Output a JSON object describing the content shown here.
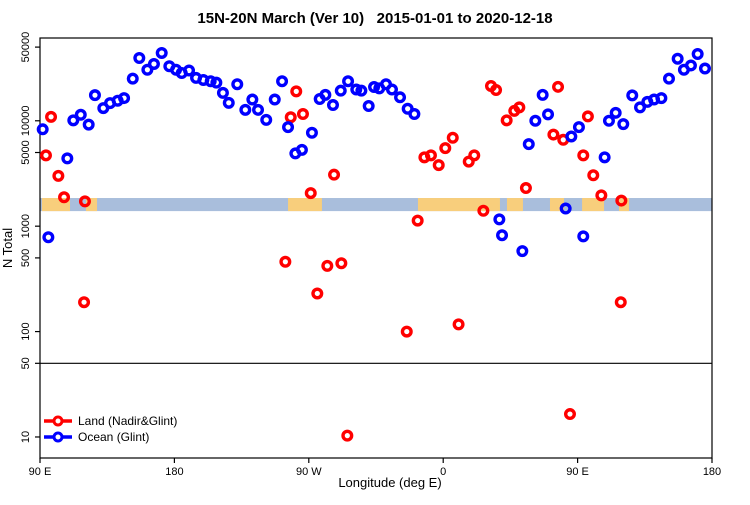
{
  "chart_data": {
    "type": "scatter",
    "title": "15N-20N March (Ver 10)   2015-01-01 to 2020-12-18",
    "x_axis": {
      "label": "Longitude (deg E)",
      "note": "axis wraps eastward starting at 90E",
      "range_deg": [
        0,
        450
      ],
      "ticks": [
        {
          "deg": 0,
          "label": "90 E"
        },
        {
          "deg": 90,
          "label": "180"
        },
        {
          "deg": 180,
          "label": "90 W"
        },
        {
          "deg": 270,
          "label": "0"
        },
        {
          "deg": 360,
          "label": "90 E"
        },
        {
          "deg": 450,
          "label": "180"
        }
      ]
    },
    "y_axis": {
      "label": "N Total",
      "scale": "log10",
      "range": [
        6.3,
        61000
      ],
      "ticks": [
        10,
        50,
        100,
        500,
        1000,
        5000,
        10000,
        50000
      ]
    },
    "reference_line": {
      "n": 50,
      "color": "#000000"
    },
    "map_band": {
      "n_range": [
        1390,
        1850
      ],
      "ocean_color": "#A9BEDC",
      "land_color": "#F8CE7C",
      "land_patches_deg": [
        [
          1.3,
          20.1
        ],
        [
          30.8,
          38.2
        ],
        [
          166.1,
          188.8
        ],
        [
          253.1,
          308.0
        ],
        [
          312.7,
          323.4
        ],
        [
          341.5,
          350.9
        ],
        [
          363.0,
          377.7
        ],
        [
          387.7,
          394.4
        ]
      ]
    },
    "legend": {
      "position": "bottom-left"
    },
    "series": [
      {
        "name": "Land (Nadir&Glint)",
        "color": "#FF0000",
        "points": [
          [
            7.4,
            10900
          ],
          [
            4.0,
            4700
          ],
          [
            12.3,
            3000
          ],
          [
            16.1,
            1880
          ],
          [
            30.1,
            1720
          ],
          [
            29.5,
            190
          ],
          [
            164.3,
            460
          ],
          [
            167.9,
            10800
          ],
          [
            171.6,
            19000
          ],
          [
            176.1,
            11600
          ],
          [
            181.3,
            2060
          ],
          [
            185.7,
            230
          ],
          [
            192.4,
            420
          ],
          [
            196.9,
            3080
          ],
          [
            201.8,
            445
          ],
          [
            205.8,
            10.3
          ],
          [
            245.6,
            100
          ],
          [
            252.9,
            1130
          ],
          [
            257.4,
            4500
          ],
          [
            261.8,
            4700
          ],
          [
            267.0,
            3800
          ],
          [
            271.4,
            5500
          ],
          [
            276.4,
            6900
          ],
          [
            280.3,
            117
          ],
          [
            287.1,
            4100
          ],
          [
            290.8,
            4700
          ],
          [
            296.9,
            1400
          ],
          [
            302.0,
            21400
          ],
          [
            305.4,
            19600
          ],
          [
            312.5,
            10100
          ],
          [
            317.6,
            12400
          ],
          [
            321.0,
            13400
          ],
          [
            325.4,
            2300
          ],
          [
            343.8,
            7400
          ],
          [
            346.9,
            21000
          ],
          [
            350.4,
            6600
          ],
          [
            354.9,
            16.5
          ],
          [
            363.8,
            4700
          ],
          [
            366.9,
            11000
          ],
          [
            370.5,
            3040
          ],
          [
            375.9,
            1960
          ],
          [
            388.9,
            190
          ],
          [
            389.3,
            1750
          ]
        ]
      },
      {
        "name": "Ocean (Glint)",
        "color": "#0000FF",
        "points": [
          [
            1.8,
            8300
          ],
          [
            5.6,
            785
          ],
          [
            18.3,
            4400
          ],
          [
            22.3,
            10100
          ],
          [
            27.3,
            11400
          ],
          [
            32.6,
            9200
          ],
          [
            36.8,
            17500
          ],
          [
            42.4,
            13200
          ],
          [
            46.9,
            14700
          ],
          [
            52.0,
            15500
          ],
          [
            56.3,
            16400
          ],
          [
            62.1,
            25100
          ],
          [
            66.5,
            39400
          ],
          [
            71.9,
            30500
          ],
          [
            76.3,
            34600
          ],
          [
            81.5,
            44000
          ],
          [
            86.6,
            32900
          ],
          [
            91.1,
            30500
          ],
          [
            94.9,
            28400
          ],
          [
            99.8,
            30000
          ],
          [
            104.5,
            25500
          ],
          [
            109.4,
            24400
          ],
          [
            114.3,
            23700
          ],
          [
            118.1,
            23000
          ],
          [
            122.5,
            18400
          ],
          [
            126.4,
            14800
          ],
          [
            132.1,
            22200
          ],
          [
            137.5,
            12700
          ],
          [
            142.2,
            15900
          ],
          [
            146.0,
            12700
          ],
          [
            151.5,
            10200
          ],
          [
            157.2,
            15900
          ],
          [
            162.1,
            23700
          ],
          [
            166.1,
            8700
          ],
          [
            171.0,
            4900
          ],
          [
            175.4,
            5300
          ],
          [
            182.1,
            7700
          ],
          [
            187.3,
            16100
          ],
          [
            191.1,
            17600
          ],
          [
            196.2,
            14100
          ],
          [
            201.4,
            19300
          ],
          [
            206.3,
            23700
          ],
          [
            211.8,
            19800
          ],
          [
            215.2,
            19300
          ],
          [
            220.1,
            13800
          ],
          [
            223.7,
            20900
          ],
          [
            227.2,
            20300
          ],
          [
            231.7,
            22200
          ],
          [
            235.7,
            19800
          ],
          [
            241.1,
            16700
          ],
          [
            246.2,
            13000
          ],
          [
            250.7,
            11600
          ],
          [
            307.6,
            1160
          ],
          [
            309.4,
            820
          ],
          [
            323.0,
            580
          ],
          [
            327.3,
            6000
          ],
          [
            331.7,
            10000
          ],
          [
            336.6,
            17600
          ],
          [
            340.2,
            11500
          ],
          [
            352.0,
            1470
          ],
          [
            355.8,
            7100
          ],
          [
            360.9,
            8700
          ],
          [
            363.8,
            800
          ],
          [
            378.1,
            4500
          ],
          [
            381.0,
            10000
          ],
          [
            385.5,
            11900
          ],
          [
            390.6,
            9300
          ],
          [
            396.6,
            17400
          ],
          [
            401.8,
            13400
          ],
          [
            406.7,
            15100
          ],
          [
            411.2,
            15900
          ],
          [
            416.1,
            16400
          ],
          [
            421.2,
            25100
          ],
          [
            427.0,
            38800
          ],
          [
            431.2,
            30500
          ],
          [
            435.9,
            33500
          ],
          [
            440.4,
            43000
          ],
          [
            445.3,
            31300
          ]
        ]
      }
    ]
  }
}
